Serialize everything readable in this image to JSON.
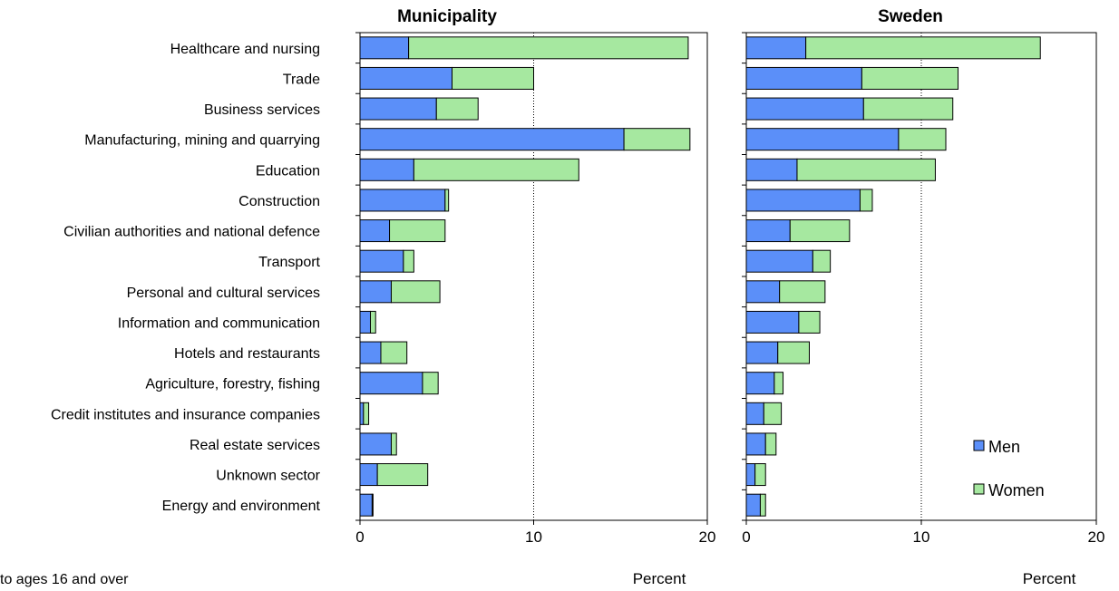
{
  "colors": {
    "men": "#5b8ff9",
    "women": "#a6e8a0",
    "border": "#000000",
    "grid": "#000000"
  },
  "footnote": "to ages 16 and over",
  "legend": {
    "men": "Men",
    "women": "Women",
    "placement": "bottom-right"
  },
  "chart_data": [
    {
      "type": "bar",
      "orientation": "horizontal",
      "stacked": true,
      "title": "Municipality",
      "xlabel": "Percent",
      "xlim": [
        0,
        20
      ],
      "xticks": [
        "0",
        "10",
        "20"
      ],
      "categories": [
        "Healthcare and nursing",
        "Trade",
        "Business services",
        "Manufacturing, mining and quarrying",
        "Education",
        "Construction",
        "Civilian authorities and national defence",
        "Transport",
        "Personal and cultural services",
        "Information and communication",
        "Hotels and restaurants",
        "Agriculture, forestry, fishing",
        "Credit institutes and insurance companies",
        "Real estate services",
        "Unknown sector",
        "Energy and environment"
      ],
      "series": [
        {
          "name": "Men",
          "values": [
            2.8,
            5.3,
            4.4,
            15.2,
            3.1,
            4.9,
            1.7,
            2.5,
            1.8,
            0.6,
            1.2,
            3.6,
            0.2,
            1.8,
            1.0,
            0.7
          ]
        },
        {
          "name": "Women",
          "values": [
            16.1,
            4.7,
            2.4,
            3.8,
            9.5,
            0.2,
            3.2,
            0.6,
            2.8,
            0.3,
            1.5,
            0.9,
            0.3,
            0.3,
            2.9,
            0.05
          ]
        }
      ]
    },
    {
      "type": "bar",
      "orientation": "horizontal",
      "stacked": true,
      "title": "Sweden",
      "xlabel": "Percent",
      "xlim": [
        0,
        20
      ],
      "xticks": [
        "0",
        "10",
        "20"
      ],
      "categories": [
        "Healthcare and nursing",
        "Trade",
        "Business services",
        "Manufacturing, mining and quarrying",
        "Education",
        "Construction",
        "Civilian authorities and national defence",
        "Transport",
        "Personal and cultural services",
        "Information and communication",
        "Hotels and restaurants",
        "Agriculture, forestry, fishing",
        "Credit institutes and insurance companies",
        "Real estate services",
        "Unknown sector",
        "Energy and environment"
      ],
      "series": [
        {
          "name": "Men",
          "values": [
            3.4,
            6.6,
            6.7,
            8.7,
            2.9,
            6.5,
            2.5,
            3.8,
            1.9,
            3.0,
            1.8,
            1.6,
            1.0,
            1.1,
            0.5,
            0.8
          ]
        },
        {
          "name": "Women",
          "values": [
            13.4,
            5.5,
            5.1,
            2.7,
            7.9,
            0.7,
            3.4,
            1.0,
            2.6,
            1.2,
            1.8,
            0.5,
            1.0,
            0.6,
            0.6,
            0.3
          ]
        }
      ]
    }
  ]
}
